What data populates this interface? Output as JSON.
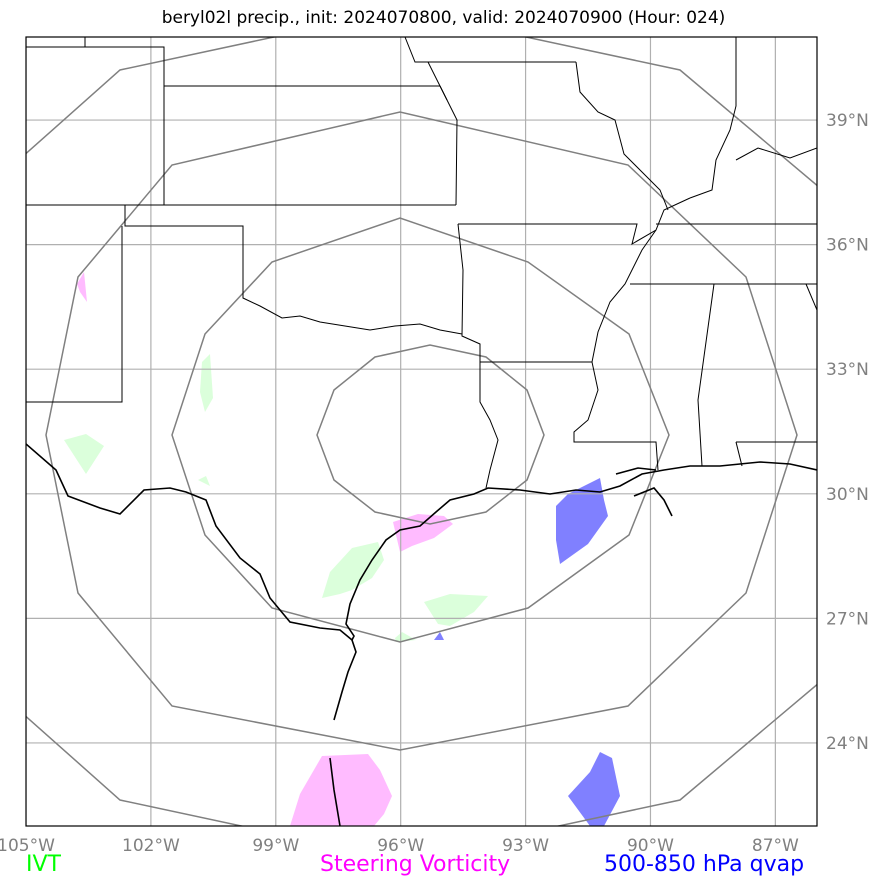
{
  "title": "beryl02l precip., init: 2024070800, valid: 2024070900 (Hour: 024)",
  "map": {
    "lon_range": [
      -105.0,
      -86.0
    ],
    "lat_range": [
      22.0,
      41.0
    ],
    "lon_ticks": [
      "105°W",
      "102°W",
      "99°W",
      "96°W",
      "93°W",
      "90°W",
      "87°W"
    ],
    "lat_ticks": [
      "39°N",
      "36°N",
      "33°N",
      "30°N",
      "27°N",
      "24°N"
    ],
    "range_rings": 4
  },
  "legend": {
    "ivt": {
      "label": "IVT",
      "color": "#00ff00"
    },
    "vort": {
      "label": "Steering Vorticity",
      "color": "#ff00ff"
    },
    "qvap": {
      "label": "500-850 hPa qvap",
      "color": "#0000ff"
    }
  },
  "colors": {
    "ivt_fill": "#ccffcc",
    "vort_fill": "#ffaaff",
    "qvap_fill": "#6a6aff",
    "grid": "#b0b0b0",
    "rings": "#808080"
  }
}
